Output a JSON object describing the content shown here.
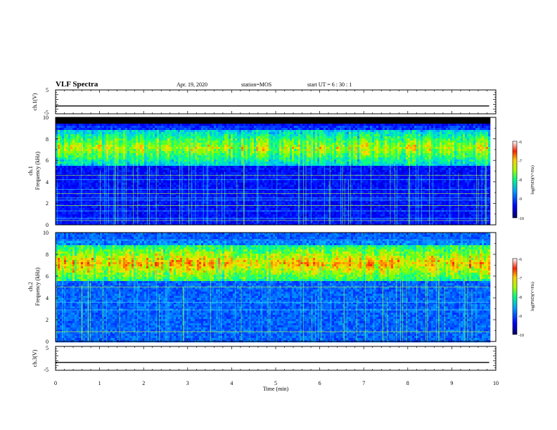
{
  "header": {
    "title": "VLF Spectra",
    "date": "Apr. 19, 2020",
    "station": "station=MOS",
    "start": "start  UT =  6 : 30 : 1"
  },
  "chart_data": [
    {
      "type": "line",
      "name": "ch1-voltage",
      "ylabel": "ch.1(V)",
      "ylim": [
        -5,
        5
      ],
      "yticks": [
        "5",
        "-5"
      ],
      "xlim": [
        0,
        10
      ],
      "series": [
        {
          "x": [
            0,
            9.85
          ],
          "y": [
            -1.7,
            -1.7
          ]
        }
      ]
    },
    {
      "type": "heatmap",
      "name": "ch1-spectrogram",
      "ylabel": "ch.1\nFrequency (kHz)",
      "ylim": [
        0,
        10
      ],
      "yticks": [
        "0",
        "2",
        "4",
        "6",
        "8",
        "10"
      ],
      "xlim": [
        0,
        10
      ],
      "data_end_min": 9.85,
      "background_cutoff_khz": 9.5,
      "emission_band_khz": [
        5.5,
        8.8
      ],
      "colorbar": {
        "label": "log(PSD)(V²/Hz)",
        "range": [
          -10,
          -6
        ],
        "ticks": [
          "-6",
          "-7",
          "-8",
          "-9",
          "-10"
        ]
      }
    },
    {
      "type": "heatmap",
      "name": "ch2-spectrogram",
      "ylabel": "ch.2\nFrequency (kHz)",
      "ylim": [
        0,
        10
      ],
      "yticks": [
        "0",
        "2",
        "4",
        "6",
        "8",
        "10"
      ],
      "xlim": [
        0,
        10
      ],
      "data_end_min": 9.85,
      "emission_band_khz": [
        5.5,
        8.8
      ],
      "colorbar": {
        "label": "log(PSD)(V²/Hz)",
        "range": [
          -10,
          -6
        ],
        "ticks": [
          "-6",
          "-7",
          "-8",
          "-9",
          "-10"
        ]
      }
    },
    {
      "type": "line",
      "name": "ch3-voltage",
      "ylabel": "ch.3(V)",
      "ylim": [
        -5,
        5
      ],
      "yticks": [
        "5",
        "-5"
      ],
      "xlim": [
        0,
        10
      ],
      "xlabel": "Time  (min)",
      "xticks": [
        "0",
        "1",
        "2",
        "3",
        "4",
        "5",
        "6",
        "7",
        "8",
        "9",
        "10"
      ],
      "series": [
        {
          "x": [
            0,
            9.85
          ],
          "y": [
            -1.7,
            -1.7
          ]
        }
      ]
    }
  ],
  "colors": {
    "colormap": [
      "#00007a",
      "#0000ff",
      "#0060ff",
      "#00c0ff",
      "#00ff90",
      "#80ff00",
      "#ffe000",
      "#ff6000",
      "#ff0000",
      "#ffffff"
    ],
    "axis": "#000000"
  }
}
